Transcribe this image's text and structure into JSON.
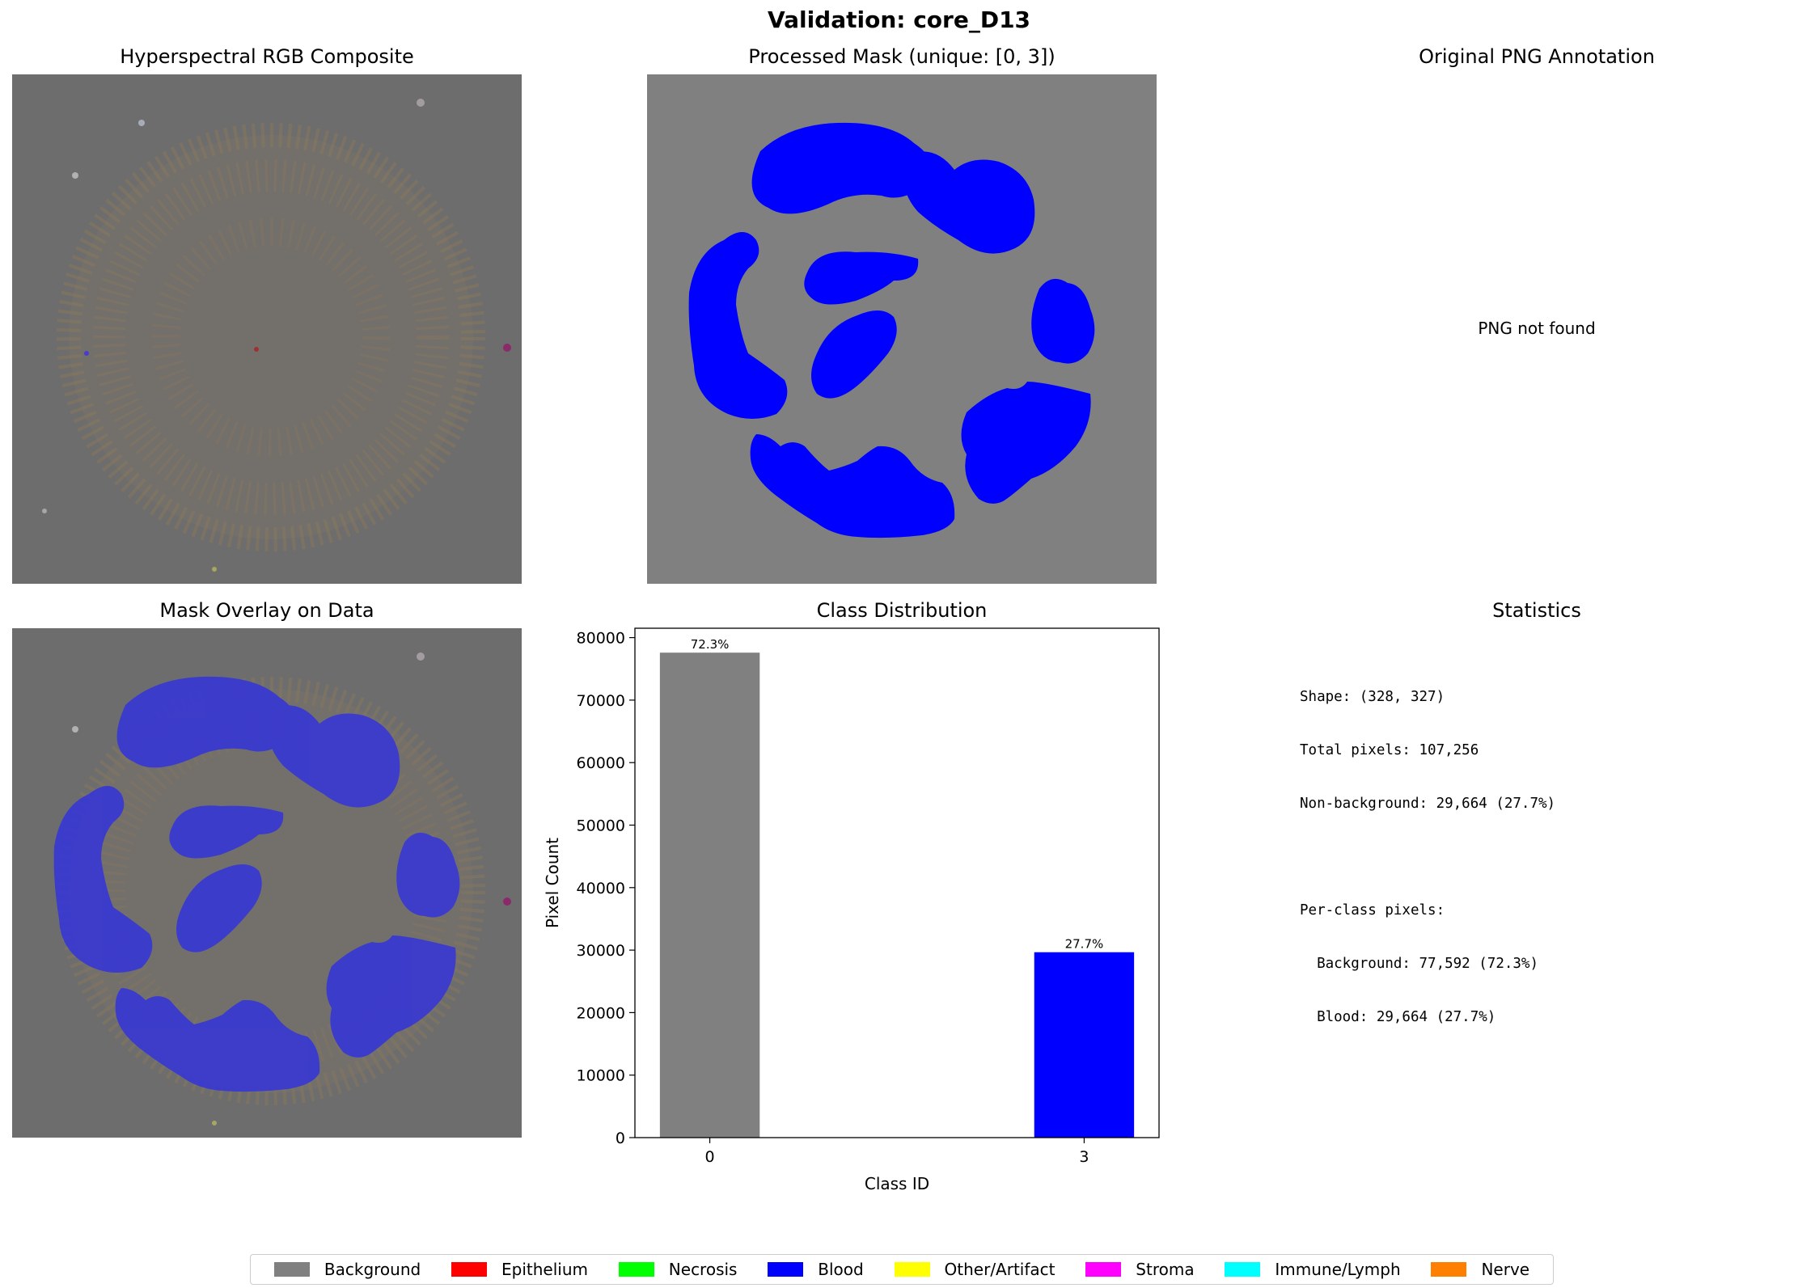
{
  "suptitle": "Validation: core_D13",
  "panels": {
    "rgb_title": "Hyperspectral RGB Composite",
    "mask_title": "Processed Mask (unique: [0, 3])",
    "png_title": "Original PNG Annotation",
    "png_message": "PNG not found",
    "overlay_title": "Mask Overlay on Data",
    "dist_title": "Class Distribution",
    "stats_title": "Statistics"
  },
  "stats": {
    "lines": [
      "Shape: (328, 327)",
      "Total pixels: 107,256",
      "Non-background: 29,664 (27.7%)",
      "",
      "Per-class pixels:",
      "  Background: 77,592 (72.3%)",
      "  Blood: 29,664 (27.7%)"
    ]
  },
  "chart_data": {
    "type": "bar",
    "title": "Class Distribution",
    "xlabel": "Class ID",
    "ylabel": "Pixel Count",
    "categories": [
      "0",
      "3"
    ],
    "x_positions": [
      0,
      3
    ],
    "values": [
      77592,
      29664
    ],
    "bar_labels": [
      "72.3%",
      "27.7%"
    ],
    "bar_colors": [
      "#808080",
      "#0000ff"
    ],
    "ylim": [
      0,
      81500
    ],
    "xlim": [
      -0.6,
      3.6
    ],
    "yticks": [
      0,
      10000,
      20000,
      30000,
      40000,
      50000,
      60000,
      70000,
      80000
    ],
    "grid": false
  },
  "legend": {
    "items": [
      {
        "label": "Background",
        "color": "#808080"
      },
      {
        "label": "Epithelium",
        "color": "#ff0000"
      },
      {
        "label": "Necrosis",
        "color": "#00ff00"
      },
      {
        "label": "Blood",
        "color": "#0000ff"
      },
      {
        "label": "Other/Artifact",
        "color": "#ffff00"
      },
      {
        "label": "Stroma",
        "color": "#ff00ff"
      },
      {
        "label": "Immune/Lymph",
        "color": "#00ffff"
      },
      {
        "label": "Nerve",
        "color": "#ff8000"
      }
    ]
  },
  "colors": {
    "image_background": "#6d6d6d",
    "mask_background": "#808080",
    "mask_blood": "#0000ff",
    "overlay_blood": "#3a3ad0",
    "tissue_tint": "#8a7860"
  }
}
